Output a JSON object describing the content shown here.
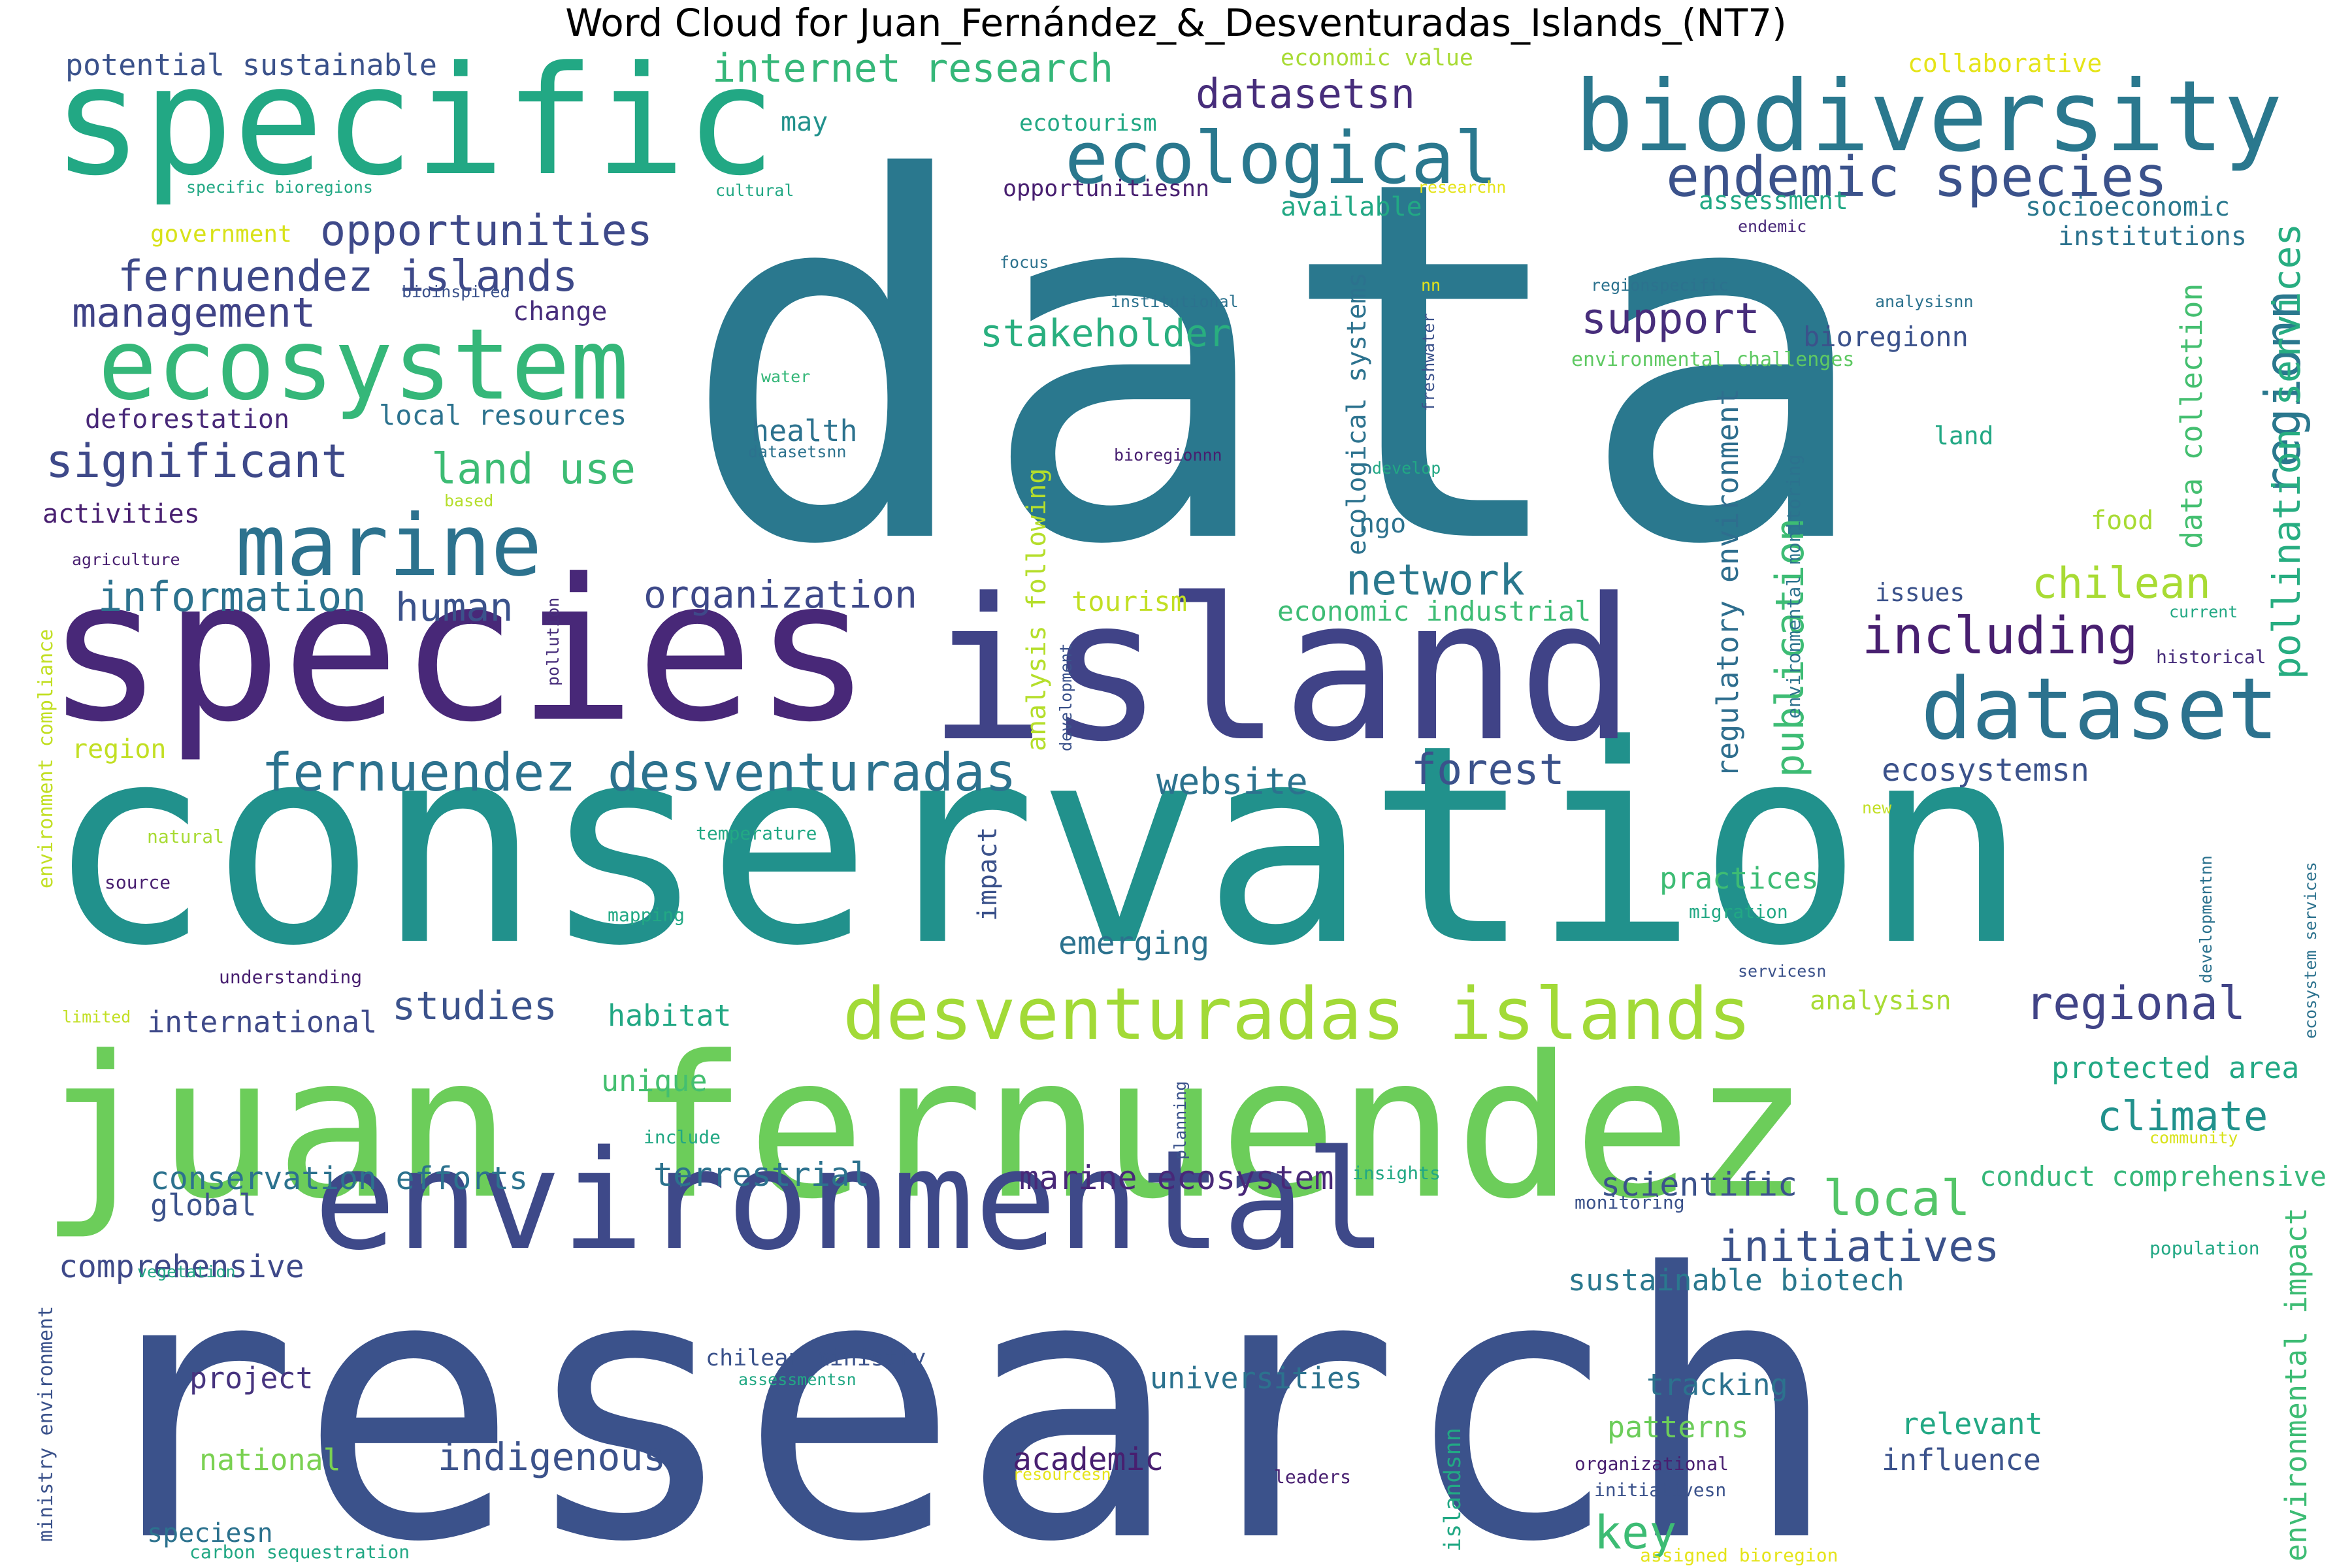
{
  "title": "Word Cloud for Juan_Fernández_&_Desventuradas_Islands_(NT7)",
  "palette": {
    "c1": "#440154",
    "c2": "#46337e",
    "c3": "#365c8d",
    "c4": "#277f8e",
    "c5": "#1fa187",
    "c6": "#4ac16d",
    "c7": "#a0da39",
    "c8": "#fde725",
    "dark_blue": "#3b528b",
    "teal": "#21918c",
    "green": "#5ec962"
  },
  "words": [
    {
      "text": "data",
      "color": "#2a788e"
    },
    {
      "text": "research",
      "color": "#3b528b"
    },
    {
      "text": "conservation",
      "color": "#21918c"
    },
    {
      "text": "species",
      "color": "#482878"
    },
    {
      "text": "island",
      "color": "#404387"
    },
    {
      "text": "juan fernuendez",
      "color": "#6ccd5a"
    },
    {
      "text": "specific",
      "color": "#22a884"
    },
    {
      "text": "environmental",
      "color": "#3e4989"
    },
    {
      "text": "biodiversity",
      "color": "#2a788e"
    },
    {
      "text": "ecosystem",
      "color": "#35b779"
    },
    {
      "text": "marine",
      "color": "#2c728e"
    },
    {
      "text": "desventuradas islands",
      "color": "#a2da37"
    },
    {
      "text": "dataset",
      "color": "#2c728e"
    },
    {
      "text": "ecological",
      "color": "#2a788e"
    },
    {
      "text": "endemic species",
      "color": "#3b528b"
    },
    {
      "text": "fernuendez desventuradas",
      "color": "#2c728e"
    },
    {
      "text": "regionn",
      "color": "#2a788e"
    },
    {
      "text": "pollination services",
      "color": "#27ad81"
    },
    {
      "text": "opportunities",
      "color": "#3e4989"
    },
    {
      "text": "fernuendez islands",
      "color": "#3e4989"
    },
    {
      "text": "management",
      "color": "#404387"
    },
    {
      "text": "significant",
      "color": "#3e4989"
    },
    {
      "text": "land use",
      "color": "#3dbc74"
    },
    {
      "text": "information",
      "color": "#2c728e"
    },
    {
      "text": "human",
      "color": "#3b528b"
    },
    {
      "text": "organization",
      "color": "#3e4989"
    },
    {
      "text": "including",
      "color": "#481f70"
    },
    {
      "text": "chilean",
      "color": "#a8db34"
    },
    {
      "text": "internet research",
      "color": "#35b779"
    },
    {
      "text": "potential sustainable",
      "color": "#3b528b"
    },
    {
      "text": "datasetsn",
      "color": "#472d7b"
    },
    {
      "text": "support",
      "color": "#472d7b"
    },
    {
      "text": "stakeholder",
      "color": "#29af7f"
    },
    {
      "text": "network",
      "color": "#2a788e"
    },
    {
      "text": "forest",
      "color": "#3b528b"
    },
    {
      "text": "website",
      "color": "#2c728e"
    },
    {
      "text": "publication",
      "color": "#3dbc74"
    },
    {
      "text": "regulatory environment",
      "color": "#2e6e8e"
    },
    {
      "text": "ecosystemsn",
      "color": "#3b528b"
    },
    {
      "text": "regional",
      "color": "#414487"
    },
    {
      "text": "local",
      "color": "#54c568"
    },
    {
      "text": "initiatives",
      "color": "#3b528b"
    },
    {
      "text": "climate",
      "color": "#21918c"
    },
    {
      "text": "key",
      "color": "#3dbc74"
    },
    {
      "text": "studies",
      "color": "#3b528b"
    },
    {
      "text": "habitat",
      "color": "#22a884"
    },
    {
      "text": "unique",
      "color": "#44bf70"
    },
    {
      "text": "international",
      "color": "#3e4989"
    },
    {
      "text": "conservation efforts",
      "color": "#2c728e"
    },
    {
      "text": "global",
      "color": "#3b528b"
    },
    {
      "text": "comprehensive",
      "color": "#3e4989"
    },
    {
      "text": "terrestrial",
      "color": "#2c728e"
    },
    {
      "text": "marine ecosystem",
      "color": "#482878"
    },
    {
      "text": "scientific",
      "color": "#3b528b"
    },
    {
      "text": "conduct comprehensive",
      "color": "#35b779"
    },
    {
      "text": "sustainable biotech",
      "color": "#2a788e"
    },
    {
      "text": "indigenous",
      "color": "#3b528b"
    },
    {
      "text": "universities",
      "color": "#2c728e"
    },
    {
      "text": "academic",
      "color": "#481f70"
    },
    {
      "text": "project",
      "color": "#46337e"
    },
    {
      "text": "national",
      "color": "#7ad151"
    },
    {
      "text": "tracking",
      "color": "#2c728e"
    },
    {
      "text": "patterns",
      "color": "#6ccd5a"
    },
    {
      "text": "relevant",
      "color": "#22a884"
    },
    {
      "text": "influence",
      "color": "#3b528b"
    },
    {
      "text": "protected area",
      "color": "#22a884"
    },
    {
      "text": "emerging",
      "color": "#2c728e"
    },
    {
      "text": "practices",
      "color": "#3dbc74"
    },
    {
      "text": "analysisn",
      "color": "#a8db34"
    },
    {
      "text": "environmental impact",
      "color": "#3dbc74"
    },
    {
      "text": "data collection",
      "color": "#44bf70"
    },
    {
      "text": "ecological systems",
      "color": "#2c728e"
    },
    {
      "text": "analysis following",
      "color": "#b5de2b"
    },
    {
      "text": "tourism",
      "color": "#c2df23"
    },
    {
      "text": "economic industrial",
      "color": "#3dbc74"
    },
    {
      "text": "health",
      "color": "#2c728e"
    },
    {
      "text": "local resources",
      "color": "#2c728e"
    },
    {
      "text": "ngo",
      "color": "#2c728e"
    },
    {
      "text": "change",
      "color": "#472d7b"
    },
    {
      "text": "deforestation",
      "color": "#482878"
    },
    {
      "text": "activities",
      "color": "#481f70"
    },
    {
      "text": "government",
      "color": "#d8e219"
    },
    {
      "text": "may",
      "color": "#21918c"
    },
    {
      "text": "economic value",
      "color": "#a8db34"
    },
    {
      "text": "ecotourism",
      "color": "#22a884"
    },
    {
      "text": "opportunitiesnn",
      "color": "#481f70"
    },
    {
      "text": "available",
      "color": "#22a884"
    },
    {
      "text": "collaborative",
      "color": "#e5e419"
    },
    {
      "text": "assessment",
      "color": "#22a884"
    },
    {
      "text": "socioeconomic",
      "color": "#2a788e"
    },
    {
      "text": "institutions",
      "color": "#2c728e"
    },
    {
      "text": "bioregionn",
      "color": "#3b528b"
    },
    {
      "text": "food",
      "color": "#a8db34"
    },
    {
      "text": "land",
      "color": "#22a884"
    },
    {
      "text": "issues",
      "color": "#3b528b"
    },
    {
      "text": "historical",
      "color": "#472d7b"
    },
    {
      "text": "current",
      "color": "#22a884"
    },
    {
      "text": "specific bioregions",
      "color": "#22a884"
    },
    {
      "text": "cultural",
      "color": "#22a884"
    },
    {
      "text": "researchn",
      "color": "#e5e419"
    },
    {
      "text": "endemic",
      "color": "#482878"
    },
    {
      "text": "focus",
      "color": "#2c728e"
    },
    {
      "text": "institutional",
      "color": "#2c728e"
    },
    {
      "text": "bioinspired",
      "color": "#3b528b"
    },
    {
      "text": "nn",
      "color": "#e5e419"
    },
    {
      "text": "regionspecific",
      "color": "#2c728e"
    },
    {
      "text": "analysisnn",
      "color": "#2c728e"
    },
    {
      "text": "freshwater",
      "color": "#3b528b"
    },
    {
      "text": "environmental challenges",
      "color": "#5ec962"
    },
    {
      "text": "water",
      "color": "#35b779"
    },
    {
      "text": "datasetsnn",
      "color": "#2c728e"
    },
    {
      "text": "bioregionnn",
      "color": "#481f70"
    },
    {
      "text": "develop",
      "color": "#22a884"
    },
    {
      "text": "based",
      "color": "#b5de2b"
    },
    {
      "text": "agriculture",
      "color": "#481f70"
    },
    {
      "text": "environmental monitoring",
      "color": "#2c728e"
    },
    {
      "text": "pollution",
      "color": "#472d7b"
    },
    {
      "text": "development",
      "color": "#3b528b"
    },
    {
      "text": "region",
      "color": "#c2df23"
    },
    {
      "text": "environment compliance",
      "color": "#c2df23"
    },
    {
      "text": "natural",
      "color": "#a8db34"
    },
    {
      "text": "source",
      "color": "#481f70"
    },
    {
      "text": "temperature",
      "color": "#22a884"
    },
    {
      "text": "impact",
      "color": "#3b528b"
    },
    {
      "text": "new",
      "color": "#c2df23"
    },
    {
      "text": "migration",
      "color": "#22a884"
    },
    {
      "text": "developmentnn",
      "color": "#2c728e"
    },
    {
      "text": "ecosystem services",
      "color": "#2c728e"
    },
    {
      "text": "mapping",
      "color": "#22a884"
    },
    {
      "text": "understanding",
      "color": "#481f70"
    },
    {
      "text": "servicesn",
      "color": "#3b528b"
    },
    {
      "text": "limited",
      "color": "#c2df23"
    },
    {
      "text": "planning",
      "color": "#3b528b"
    },
    {
      "text": "include",
      "color": "#22a884"
    },
    {
      "text": "insights",
      "color": "#22a884"
    },
    {
      "text": "community",
      "color": "#d8e219"
    },
    {
      "text": "monitoring",
      "color": "#3b528b"
    },
    {
      "text": "population",
      "color": "#22a884"
    },
    {
      "text": "vegetation",
      "color": "#22a884"
    },
    {
      "text": "ministry environment",
      "color": "#3b528b"
    },
    {
      "text": "chilean ministry",
      "color": "#3b528b"
    },
    {
      "text": "assessmentsn",
      "color": "#22a884"
    },
    {
      "text": "resourcesn",
      "color": "#e5e419"
    },
    {
      "text": "leaders",
      "color": "#481f70"
    },
    {
      "text": "organizational",
      "color": "#481f70"
    },
    {
      "text": "initiativesn",
      "color": "#3b528b"
    },
    {
      "text": "islandsnn",
      "color": "#22a884"
    },
    {
      "text": "speciesn",
      "color": "#2c728e"
    },
    {
      "text": "carbon sequestration",
      "color": "#22a884"
    },
    {
      "text": "assigned bioregion",
      "color": "#e5e419"
    }
  ]
}
